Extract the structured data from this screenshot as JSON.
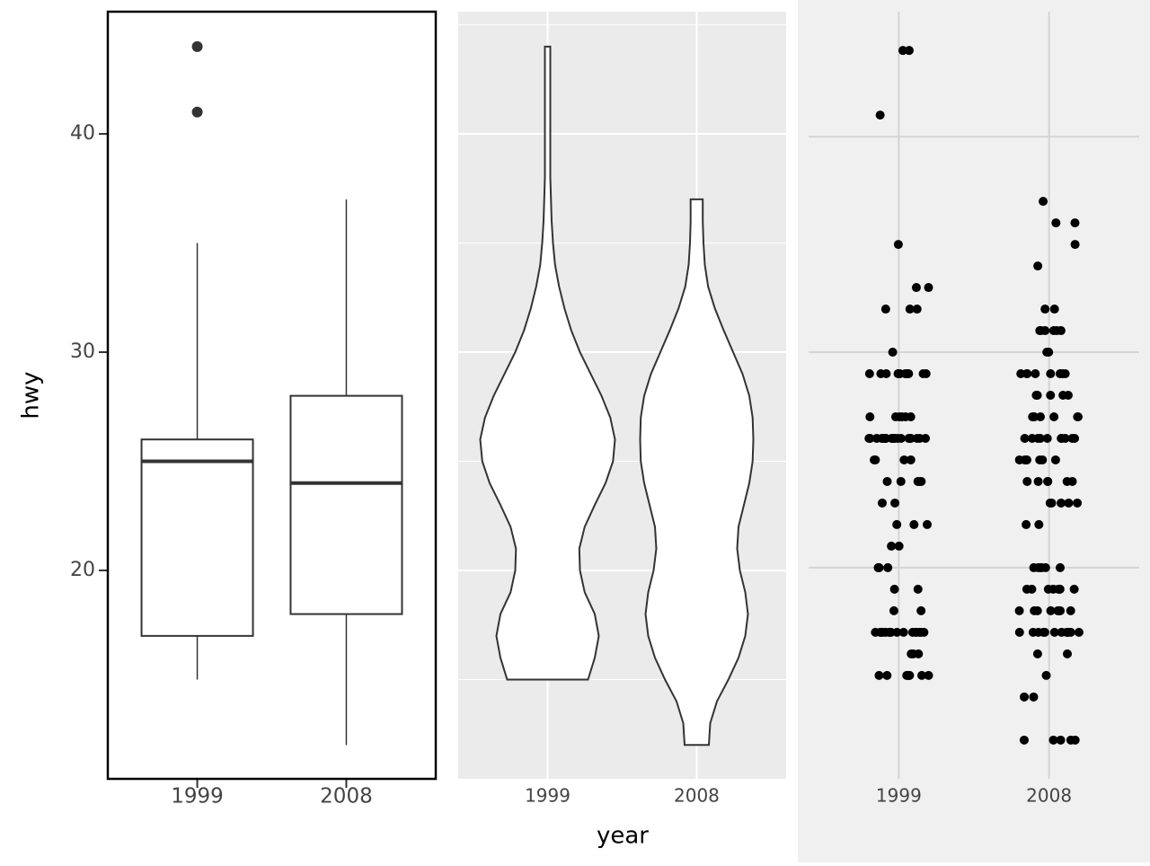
{
  "chart_data": [
    {
      "type": "box",
      "y_label": "hwy",
      "categories": [
        "1999",
        "2008"
      ],
      "boxes": [
        {
          "whislo": 15,
          "q1": 17,
          "median": 25,
          "q3": 26,
          "whishi": 35,
          "fliers": [
            41,
            44
          ]
        },
        {
          "whislo": 12,
          "q1": 18,
          "median": 24,
          "q3": 28,
          "whishi": 37,
          "fliers": []
        }
      ],
      "ylim": [
        10.45,
        45.6
      ],
      "yticks": [
        20,
        30,
        40
      ],
      "tick_labels": true,
      "grid": false
    },
    {
      "type": "violin",
      "x_label": "year",
      "categories": [
        "1999",
        "2008"
      ],
      "violins": [
        {
          "y": [
            15,
            16,
            17,
            18,
            19,
            20,
            21,
            22,
            23,
            24,
            25,
            26,
            27,
            28,
            29,
            30,
            31,
            32,
            33,
            34,
            35,
            36,
            38,
            40,
            42,
            44
          ],
          "width": [
            0.6,
            0.7,
            0.76,
            0.7,
            0.55,
            0.48,
            0.47,
            0.55,
            0.7,
            0.86,
            0.97,
            1.0,
            0.93,
            0.8,
            0.64,
            0.48,
            0.35,
            0.25,
            0.17,
            0.11,
            0.08,
            0.06,
            0.04,
            0.04,
            0.04,
            0.04
          ]
        },
        {
          "y": [
            12,
            13,
            14,
            15,
            16,
            17,
            18,
            19,
            20,
            21,
            22,
            23,
            24,
            25,
            26,
            27,
            28,
            29,
            30,
            31,
            32,
            33,
            34,
            35,
            36,
            37
          ],
          "width": [
            0.18,
            0.2,
            0.3,
            0.47,
            0.62,
            0.72,
            0.76,
            0.72,
            0.64,
            0.6,
            0.62,
            0.7,
            0.78,
            0.83,
            0.84,
            0.83,
            0.78,
            0.68,
            0.54,
            0.4,
            0.27,
            0.17,
            0.12,
            0.1,
            0.09,
            0.09
          ]
        }
      ],
      "ylim": [
        10.45,
        45.6
      ],
      "yticks": [
        20,
        30,
        40
      ],
      "minor_yticks": [
        15,
        25,
        35,
        45
      ],
      "tick_labels": false,
      "grid": true
    },
    {
      "type": "jitter",
      "categories": [
        "1999",
        "2008"
      ],
      "values": [
        [
          15,
          15,
          15,
          15,
          15,
          15,
          15,
          15,
          16,
          16,
          16,
          17,
          17,
          17,
          17,
          17,
          17,
          17,
          17,
          17,
          17,
          17,
          17,
          17,
          17,
          17,
          17,
          18,
          18,
          19,
          19,
          20,
          20,
          20,
          21,
          21,
          22,
          22,
          22,
          23,
          23,
          24,
          24,
          24,
          24,
          24,
          25,
          25,
          25,
          25,
          26,
          26,
          26,
          26,
          26,
          26,
          26,
          26,
          26,
          26,
          26,
          26,
          26,
          26,
          26,
          26,
          26,
          26,
          26,
          26,
          26,
          26,
          27,
          27,
          27,
          27,
          27,
          27,
          29,
          29,
          29,
          29,
          29,
          29,
          29,
          29,
          29,
          29,
          29,
          30,
          32,
          32,
          32,
          33,
          33,
          35,
          41,
          44,
          44
        ],
        [
          12,
          12,
          12,
          12,
          12,
          14,
          14,
          15,
          16,
          16,
          17,
          17,
          17,
          17,
          17,
          17,
          17,
          17,
          17,
          17,
          17,
          17,
          18,
          18,
          18,
          18,
          18,
          18,
          18,
          18,
          19,
          19,
          19,
          19,
          19,
          19,
          19,
          19,
          20,
          20,
          20,
          20,
          20,
          20,
          22,
          22,
          23,
          23,
          23,
          23,
          23,
          24,
          24,
          24,
          24,
          24,
          24,
          25,
          25,
          25,
          25,
          25,
          25,
          25,
          25,
          26,
          26,
          26,
          26,
          26,
          26,
          26,
          26,
          26,
          26,
          27,
          27,
          27,
          27,
          27,
          27,
          27,
          28,
          28,
          28,
          28,
          28,
          29,
          29,
          29,
          29,
          29,
          29,
          29,
          29,
          29,
          30,
          30,
          31,
          31,
          31,
          31,
          31,
          31,
          32,
          32,
          34,
          35,
          36,
          36,
          37
        ]
      ],
      "ylim": [
        10.2,
        45.8
      ],
      "yticks": [
        20,
        30,
        40
      ],
      "tick_labels": false,
      "grid": true
    }
  ]
}
